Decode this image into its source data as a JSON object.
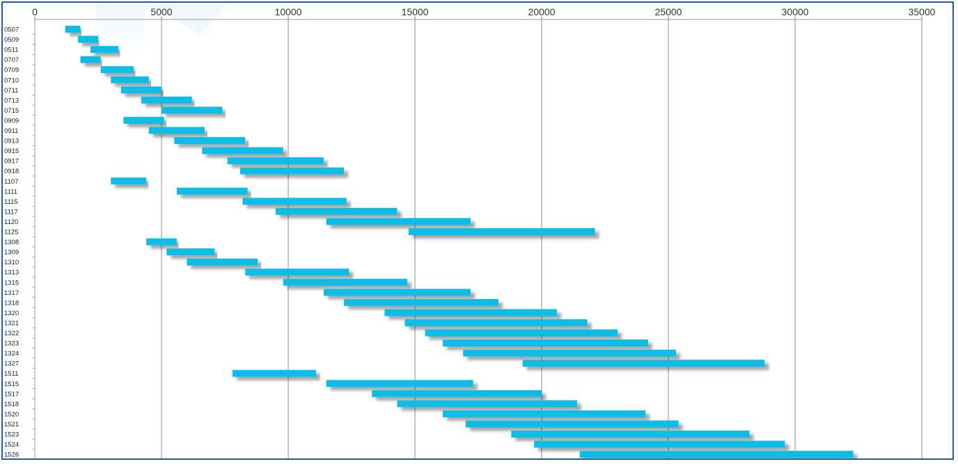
{
  "chart_data": {
    "type": "bar",
    "orientation": "horizontal-range",
    "title": "",
    "xlabel": "",
    "ylabel": "",
    "xlim": [
      0,
      35000
    ],
    "x_ticks": [
      0,
      5000,
      10000,
      15000,
      20000,
      25000,
      30000,
      35000
    ],
    "x_tick_labels": [
      "0",
      "5000",
      "10000",
      "15000",
      "20000",
      "25000",
      "30000",
      "35000"
    ],
    "grid": "vertical",
    "bar_color": "#11bde8",
    "grid_color": "#8c8c8c",
    "border_color": "#1f5fa8",
    "categories": [
      "0507",
      "0509",
      "0511",
      "0707",
      "0709",
      "0710",
      "0711",
      "0713",
      "0715",
      "0909",
      "0911",
      "0913",
      "0915",
      "0917",
      "0918",
      "1107",
      "1111",
      "1115",
      "1117",
      "1120",
      "1125",
      "1308",
      "1309",
      "1310",
      "1313",
      "1315",
      "1317",
      "1318",
      "1320",
      "1321",
      "1322",
      "1323",
      "1324",
      "1327",
      "1511",
      "1515",
      "1517",
      "1518",
      "1520",
      "1521",
      "1523",
      "1524",
      "1526"
    ],
    "start": [
      1200,
      1700,
      2200,
      1800,
      2600,
      3000,
      3400,
      4200,
      5000,
      3500,
      4500,
      5500,
      6600,
      7600,
      8100,
      3000,
      5600,
      8200,
      9500,
      11500,
      14750,
      4400,
      5200,
      6000,
      8300,
      9800,
      11400,
      12200,
      13800,
      14600,
      15400,
      16100,
      16900,
      19250,
      7800,
      11500,
      13300,
      14300,
      16100,
      17000,
      18800,
      19700,
      21500
    ],
    "end": [
      1800,
      2500,
      3300,
      2600,
      3900,
      4500,
      5000,
      6200,
      7400,
      5100,
      6700,
      8300,
      9800,
      11400,
      12200,
      4400,
      8400,
      12300,
      14300,
      17200,
      22100,
      5600,
      7100,
      8800,
      12400,
      14700,
      17200,
      18300,
      20600,
      21800,
      23000,
      24200,
      25300,
      28800,
      11100,
      17300,
      20000,
      21400,
      24100,
      25400,
      28200,
      29600,
      32300
    ]
  }
}
